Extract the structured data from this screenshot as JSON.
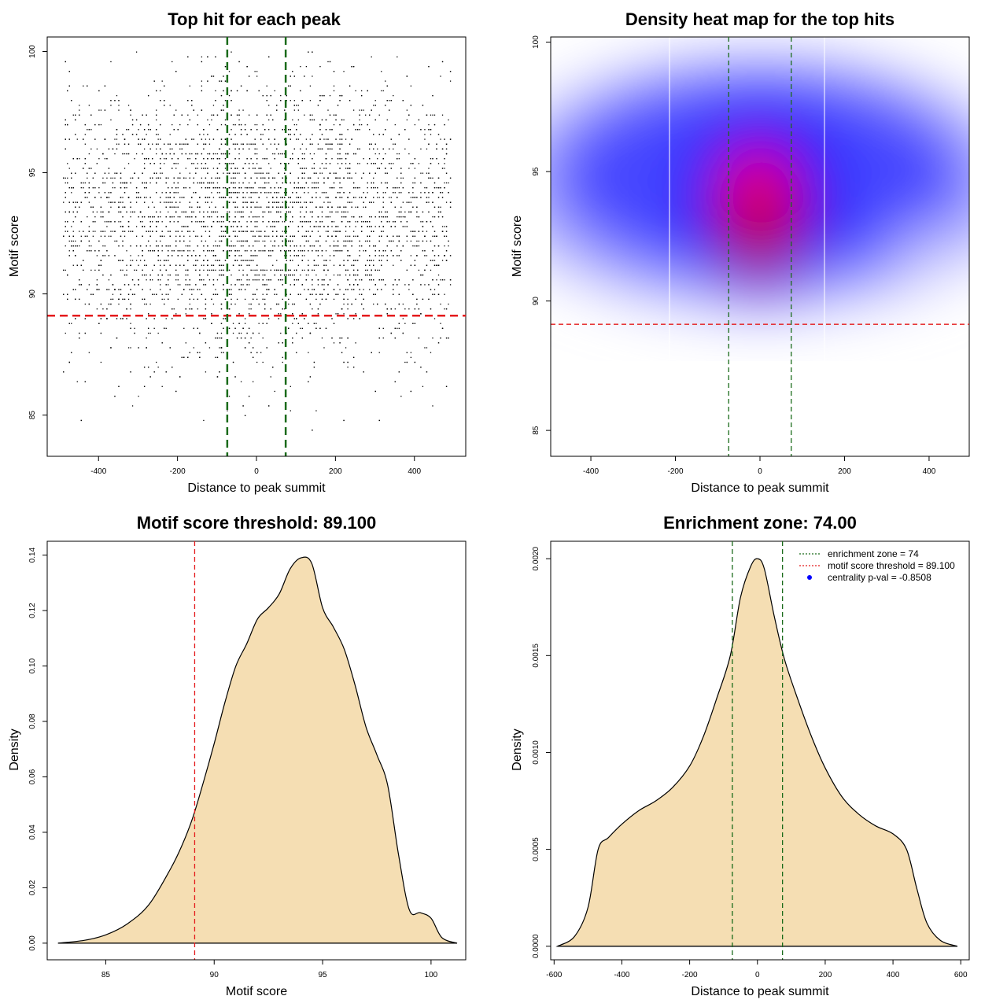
{
  "colors": {
    "threshold": "#e41a1c",
    "zone": "#1a6b1a",
    "fill": "#f5deb3",
    "point": "#000000",
    "heat_low": "#ffffff",
    "heat_mid": "#0000ff",
    "heat_high": "#ff0000",
    "centrality": "#0000ff"
  },
  "chart_data": [
    {
      "type": "scatter",
      "title": "Top hit for each peak",
      "xlabel": "Distance to peak summit",
      "ylabel": "Motif score",
      "xlim": [
        -530,
        530
      ],
      "ylim": [
        83.3,
        100.6
      ],
      "xticks": [
        "-400",
        "-200",
        "0",
        "200",
        "400"
      ],
      "yticks": [
        "85",
        "90",
        "95",
        "100"
      ],
      "threshold": 89.1,
      "zone": [
        -74,
        74
      ],
      "points_note_count": 6500,
      "point_distribution": {
        "x_center": 0,
        "x_sd": 230,
        "x_range": [
          -490,
          490
        ],
        "y_mean": 93.2,
        "y_sd": 2.8,
        "y_range": [
          84,
          100
        ]
      }
    },
    {
      "type": "heatmap",
      "title": "Density heat map for the top hits",
      "xlabel": "Distance to peak summit",
      "ylabel": "Motif score",
      "xlim": [
        -495,
        495
      ],
      "ylim": [
        84,
        100.2
      ],
      "xticks": [
        "-400",
        "-200",
        "0",
        "200",
        "400"
      ],
      "yticks": [
        "85",
        "90",
        "95",
        "100"
      ],
      "threshold": 89.1,
      "zone": [
        -74,
        74
      ],
      "peak": {
        "x": 0,
        "y": 94.4
      }
    },
    {
      "type": "area",
      "title": "Motif score threshold: 89.100",
      "xlabel": "Motif score",
      "ylabel": "Density",
      "xlim": [
        82.3,
        101.6
      ],
      "ylim": [
        -0.006,
        0.145
      ],
      "xticks": [
        "85",
        "90",
        "95",
        "100"
      ],
      "yticks": [
        "0.00",
        "0.02",
        "0.04",
        "0.06",
        "0.08",
        "0.10",
        "0.12",
        "0.14"
      ],
      "threshold": 89.1,
      "x": [
        82.8,
        84,
        85,
        86,
        87,
        88,
        88.5,
        89,
        89.5,
        90,
        90.5,
        91,
        91.5,
        92,
        92.5,
        93,
        93.5,
        94,
        94.5,
        95,
        95.5,
        96,
        96.5,
        97,
        97.5,
        98,
        98.5,
        99,
        99.5,
        100,
        100.5,
        101.2
      ],
      "y": [
        0.0,
        0.001,
        0.003,
        0.007,
        0.014,
        0.027,
        0.035,
        0.045,
        0.058,
        0.072,
        0.087,
        0.1,
        0.108,
        0.117,
        0.121,
        0.126,
        0.135,
        0.139,
        0.137,
        0.121,
        0.114,
        0.106,
        0.093,
        0.078,
        0.068,
        0.057,
        0.032,
        0.012,
        0.011,
        0.009,
        0.002,
        0.0
      ]
    },
    {
      "type": "area",
      "title": "Enrichment zone: 74.00",
      "xlabel": "Distance to peak summit",
      "ylabel": "Density",
      "xlim": [
        -610,
        625
      ],
      "ylim": [
        -7e-05,
        0.00209
      ],
      "xticks": [
        "-600",
        "-400",
        "-200",
        "0",
        "200",
        "400",
        "600"
      ],
      "yticks": [
        "0.0000",
        "0.0005",
        "0.0010",
        "0.0015",
        "0.0020"
      ],
      "zone": [
        -74,
        74
      ],
      "x": [
        -590,
        -540,
        -500,
        -470,
        -440,
        -400,
        -350,
        -300,
        -250,
        -200,
        -160,
        -120,
        -80,
        -50,
        -20,
        0,
        20,
        50,
        80,
        120,
        160,
        200,
        250,
        300,
        350,
        400,
        440,
        470,
        500,
        540,
        590
      ],
      "y": [
        0.0,
        5e-05,
        0.0002,
        0.0005,
        0.00056,
        0.00063,
        0.0007,
        0.00075,
        0.00082,
        0.00093,
        0.00108,
        0.00128,
        0.0015,
        0.0018,
        0.00196,
        0.002,
        0.00195,
        0.0017,
        0.00148,
        0.00127,
        0.00108,
        0.00092,
        0.00077,
        0.00068,
        0.00062,
        0.00058,
        0.0005,
        0.0003,
        0.00012,
        3e-05,
        0.0
      ],
      "legend": {
        "position": "top-right",
        "entries": [
          {
            "label": "enrichment zone = 74",
            "style": "dotted-green"
          },
          {
            "label": "motif score threshold = 89.100",
            "style": "dotted-red"
          },
          {
            "label": "centrality p-val = -0.8508",
            "style": "blue-dot"
          }
        ]
      }
    }
  ]
}
